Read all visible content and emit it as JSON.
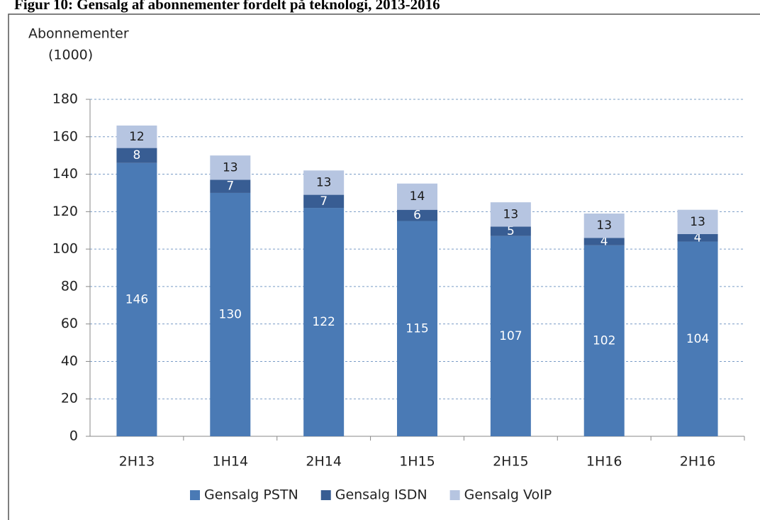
{
  "chart_data": {
    "type": "stacked_bar",
    "title": "Figur 10: Gensalg af abonnementer fordelt på teknologi, 2013-2016",
    "ylabel": "Abonnementer",
    "yunit": "(1000)",
    "categories": [
      "2H13",
      "1H14",
      "2H14",
      "1H15",
      "2H15",
      "1H16",
      "2H16"
    ],
    "series": [
      {
        "name": "Gensalg PSTN",
        "color": "#4a7ab5",
        "label_color": "#ffffff",
        "values": [
          146,
          130,
          122,
          115,
          107,
          102,
          104
        ]
      },
      {
        "name": "Gensalg ISDN",
        "color": "#385d93",
        "label_color": "#ffffff",
        "values": [
          8,
          7,
          7,
          6,
          5,
          4,
          4
        ]
      },
      {
        "name": "Gensalg VoIP",
        "color": "#b6c5e1",
        "label_color": "#1a1a1a",
        "values": [
          12,
          13,
          13,
          14,
          13,
          13,
          13
        ]
      }
    ],
    "ylim": [
      0,
      180
    ],
    "yticks": [
      0,
      20,
      40,
      60,
      80,
      100,
      120,
      140,
      160,
      180
    ],
    "grid": true,
    "legend": "bottom"
  }
}
